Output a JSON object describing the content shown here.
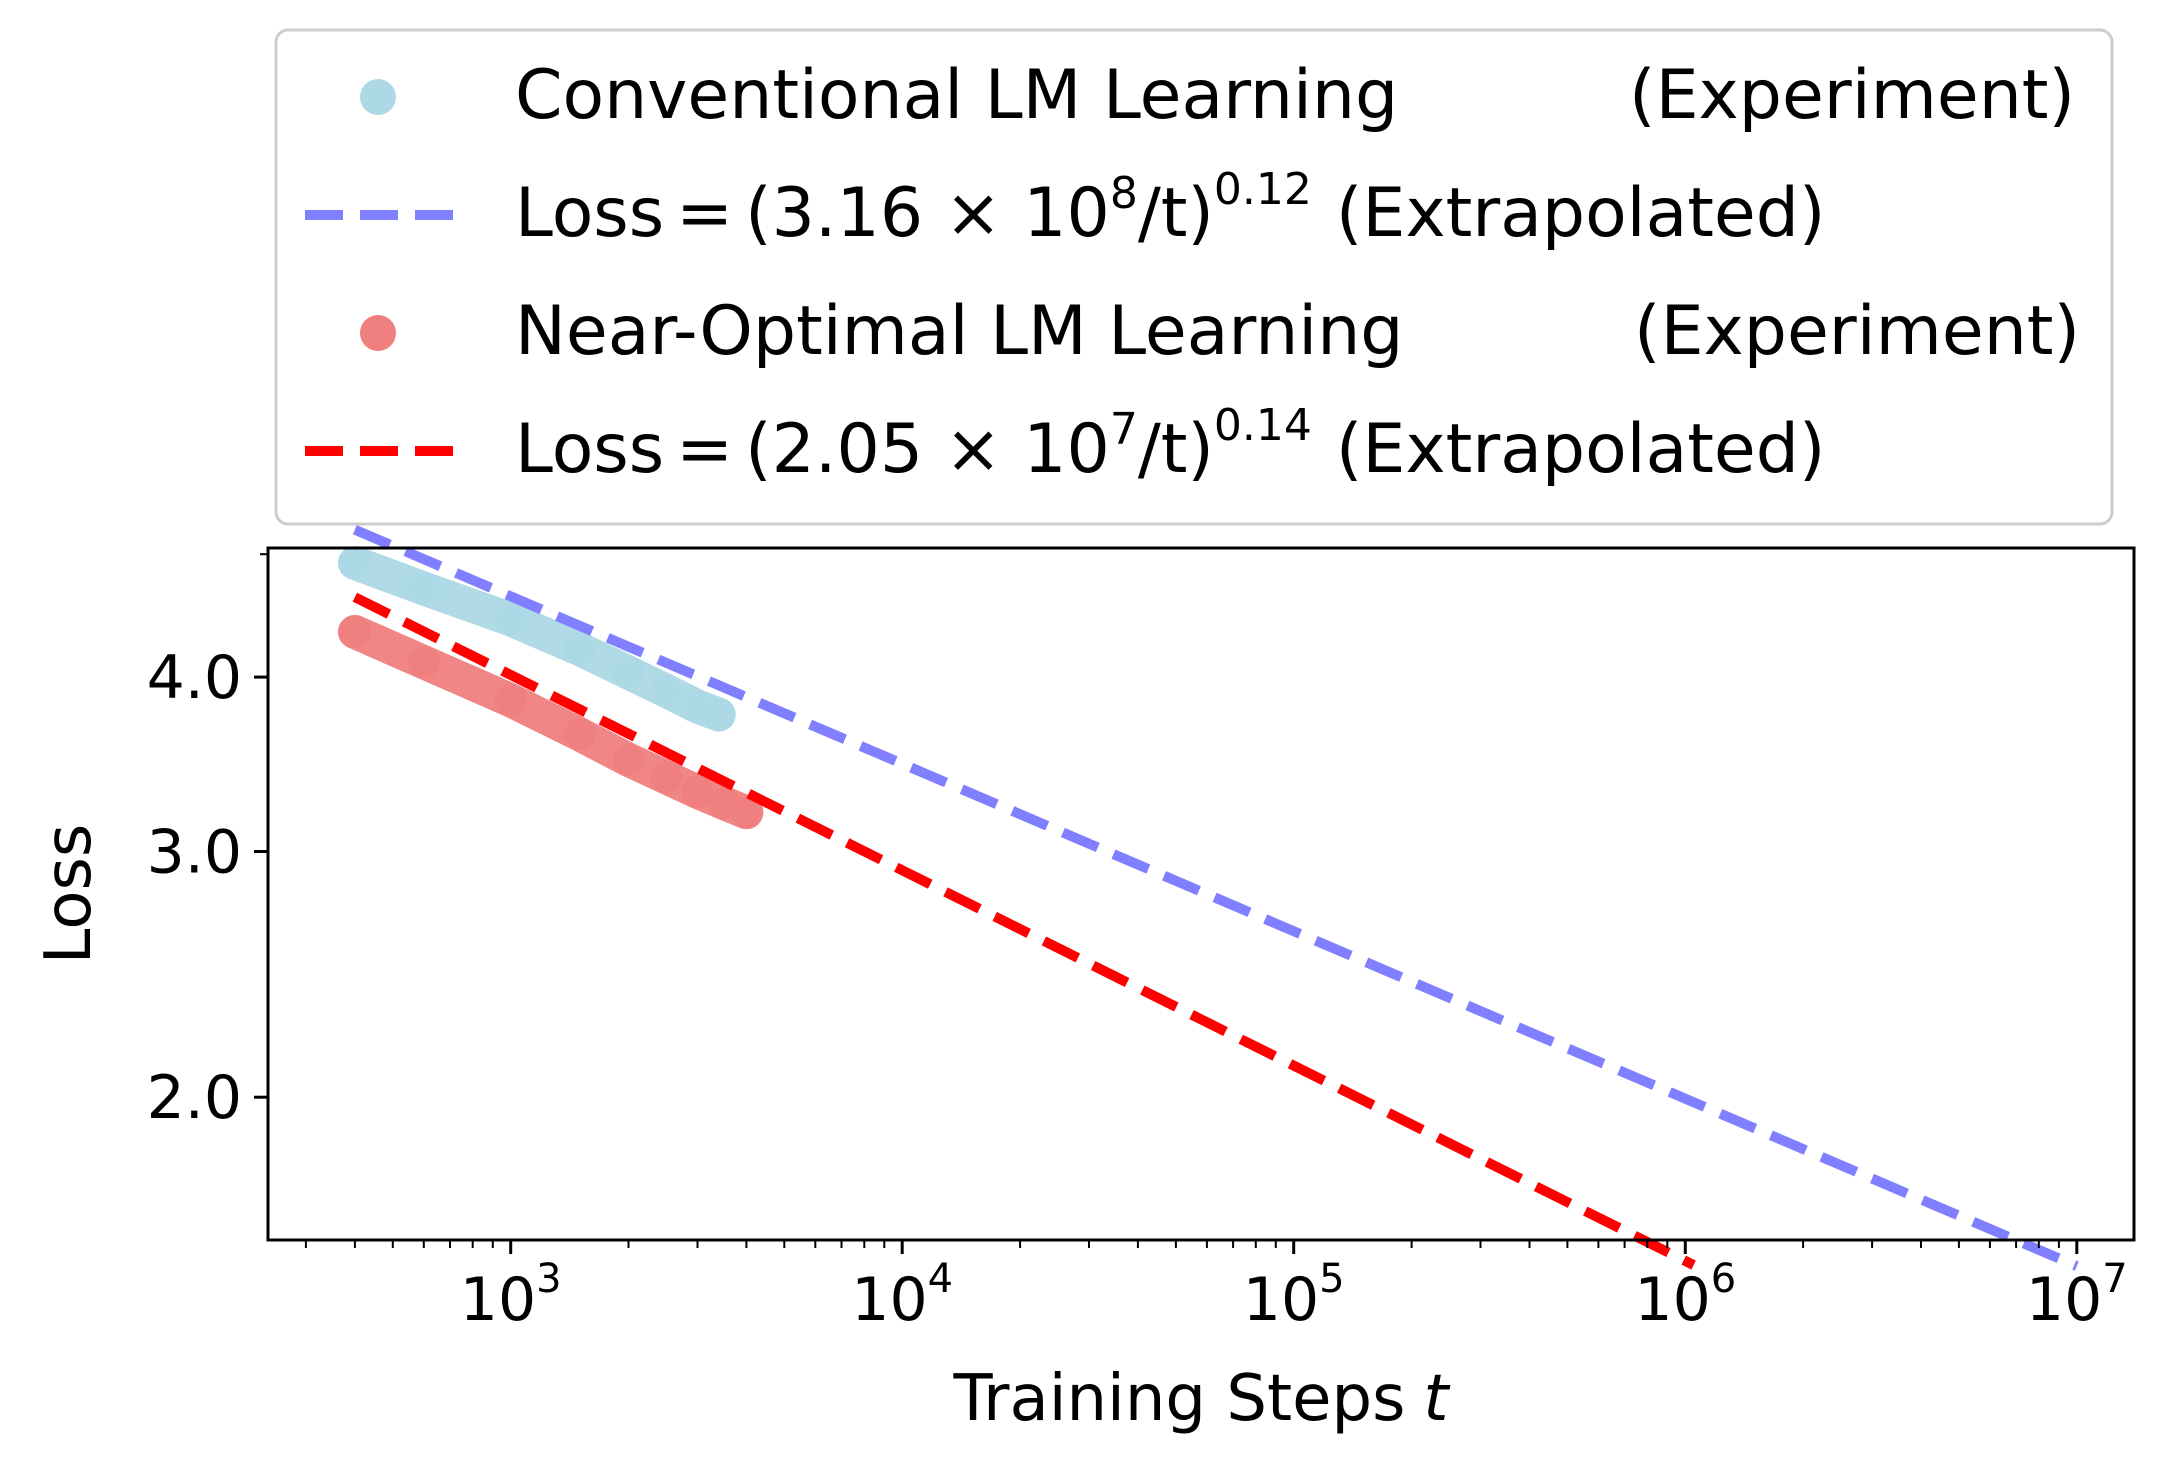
{
  "chart_data": {
    "type": "line",
    "xlabel": "Training Steps",
    "xlabel_var": "t",
    "ylabel": "Loss",
    "xscale": "log",
    "yscale": "log",
    "xlim": [
      240,
      14000000
    ],
    "ylim": [
      1.58,
      4.95
    ],
    "xticks": [
      {
        "value": 1000,
        "base": "10",
        "exp": "3"
      },
      {
        "value": 10000,
        "base": "10",
        "exp": "4"
      },
      {
        "value": 100000,
        "base": "10",
        "exp": "5"
      },
      {
        "value": 1000000,
        "base": "10",
        "exp": "6"
      },
      {
        "value": 10000000,
        "base": "10",
        "exp": "7"
      }
    ],
    "yticks": [
      {
        "value": 2.0,
        "label": "2.0"
      },
      {
        "value": 3.0,
        "label": "3.0"
      },
      {
        "value": 4.0,
        "label": "4.0"
      }
    ],
    "grid": false,
    "legend_position": "above plot",
    "series": [
      {
        "name": "Conventional LM Learning",
        "tag": "(Experiment)",
        "kind": "experiment",
        "color": "#add8e6",
        "x": [
          400,
          600,
          1000,
          1500,
          2000,
          2500,
          3000,
          3400
        ],
        "y": [
          4.83,
          4.63,
          4.4,
          4.19,
          4.03,
          3.91,
          3.81,
          3.76
        ]
      },
      {
        "name": "Loss",
        "formula": "(3.16 × 10",
        "formula_exp": "8",
        "formula_tail": "/t)",
        "power": "0.12",
        "tag": "(Extrapolated)",
        "kind": "fit",
        "color": "#7f7fff",
        "coef": 316000000,
        "alpha": 0.12,
        "x_range": [
          400,
          10000000
        ]
      },
      {
        "name": "Near-Optimal LM Learning",
        "tag": "(Experiment)",
        "kind": "experiment",
        "color": "#f08080",
        "x": [
          400,
          600,
          1000,
          1500,
          2000,
          2500,
          3000,
          3500,
          4000
        ],
        "y": [
          4.31,
          4.1,
          3.85,
          3.64,
          3.49,
          3.39,
          3.31,
          3.25,
          3.2
        ]
      },
      {
        "name": "Loss",
        "formula": "(2.05 × 10",
        "formula_exp": "7",
        "formula_tail": "/t)",
        "power": "0.14",
        "tag": "(Extrapolated)",
        "kind": "fit",
        "color": "#ff0000",
        "coef": 20500000,
        "alpha": 0.14,
        "x_range": [
          400,
          1050000
        ]
      }
    ]
  }
}
